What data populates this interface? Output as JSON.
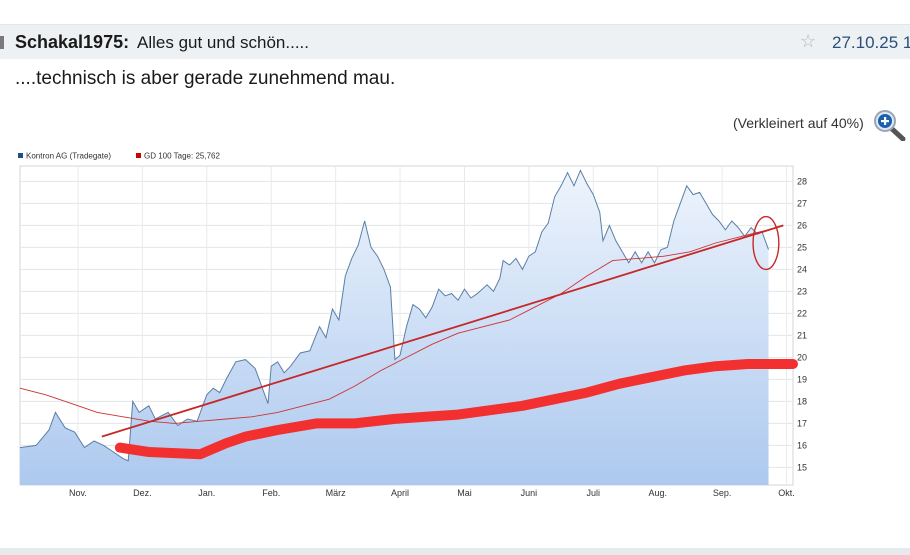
{
  "post": {
    "author": "Schakal1975:",
    "subject": "Alles gut und schön.....",
    "date": "27.10.25 1",
    "body": "....technisch is aber gerade zunehmend mau.",
    "image_note": "(Verkleinert auf 40%)",
    "icons": {
      "star": "star-icon",
      "zoom": "zoom-in-icon"
    }
  },
  "colors": {
    "price_line": "#5b7fa6",
    "area_top": "#e8f0fb",
    "area_bottom": "#a9c6ee",
    "gd100": "#cc3333",
    "trendline": "#c62828",
    "marker": "#f23030"
  },
  "chart_data": {
    "type": "area",
    "legend": [
      {
        "name": "Kontron AG (Tradegate)",
        "color": "#1f4e8c"
      },
      {
        "name": "GD 100 Tage: 25,762",
        "color": "#cc0000"
      }
    ],
    "x_ticks": [
      "Nov.",
      "Dez.",
      "Jan.",
      "Feb.",
      "März",
      "April",
      "Mai",
      "Juni",
      "Juli",
      "Aug.",
      "Sep.",
      "Okt."
    ],
    "y_ticks": [
      15,
      16,
      17,
      18,
      19,
      20,
      21,
      22,
      23,
      24,
      25,
      26,
      27,
      28
    ],
    "ylim": [
      14.2,
      28.7
    ],
    "xlim": [
      0,
      12
    ],
    "grid": true,
    "series": [
      {
        "name": "Kontron AG (Tradegate)",
        "values": [
          [
            0.0,
            15.9
          ],
          [
            0.25,
            16.0
          ],
          [
            0.45,
            16.7
          ],
          [
            0.55,
            17.5
          ],
          [
            0.7,
            16.8
          ],
          [
            0.85,
            16.6
          ],
          [
            1.0,
            15.9
          ],
          [
            1.15,
            16.2
          ],
          [
            1.3,
            16.0
          ],
          [
            1.45,
            15.7
          ],
          [
            1.6,
            15.4
          ],
          [
            1.68,
            15.3
          ],
          [
            1.75,
            18.0
          ],
          [
            1.85,
            17.5
          ],
          [
            2.0,
            17.8
          ],
          [
            2.1,
            17.2
          ],
          [
            2.3,
            17.5
          ],
          [
            2.45,
            16.9
          ],
          [
            2.6,
            17.2
          ],
          [
            2.75,
            17.1
          ],
          [
            2.9,
            18.3
          ],
          [
            3.0,
            18.6
          ],
          [
            3.1,
            18.4
          ],
          [
            3.2,
            19.0
          ],
          [
            3.35,
            19.8
          ],
          [
            3.5,
            19.9
          ],
          [
            3.65,
            19.5
          ],
          [
            3.75,
            18.7
          ],
          [
            3.85,
            17.9
          ],
          [
            3.9,
            19.6
          ],
          [
            4.0,
            19.8
          ],
          [
            4.1,
            19.3
          ],
          [
            4.2,
            19.6
          ],
          [
            4.35,
            20.2
          ],
          [
            4.5,
            20.3
          ],
          [
            4.65,
            21.4
          ],
          [
            4.75,
            20.9
          ],
          [
            4.85,
            22.2
          ],
          [
            4.95,
            21.7
          ],
          [
            5.05,
            23.7
          ],
          [
            5.15,
            24.5
          ],
          [
            5.25,
            25.1
          ],
          [
            5.35,
            26.2
          ],
          [
            5.45,
            25.0
          ],
          [
            5.55,
            24.6
          ],
          [
            5.65,
            24.0
          ],
          [
            5.75,
            23.2
          ],
          [
            5.82,
            19.9
          ],
          [
            5.9,
            20.1
          ],
          [
            6.0,
            21.4
          ],
          [
            6.1,
            22.4
          ],
          [
            6.2,
            22.2
          ],
          [
            6.3,
            21.8
          ],
          [
            6.4,
            22.3
          ],
          [
            6.5,
            23.1
          ],
          [
            6.6,
            22.8
          ],
          [
            6.7,
            22.9
          ],
          [
            6.8,
            22.6
          ],
          [
            6.9,
            23.1
          ],
          [
            7.0,
            22.7
          ],
          [
            7.1,
            22.9
          ],
          [
            7.25,
            23.3
          ],
          [
            7.35,
            23.0
          ],
          [
            7.45,
            23.6
          ],
          [
            7.5,
            24.4
          ],
          [
            7.6,
            24.2
          ],
          [
            7.7,
            24.5
          ],
          [
            7.8,
            24.0
          ],
          [
            7.9,
            24.6
          ],
          [
            8.0,
            24.8
          ],
          [
            8.1,
            25.7
          ],
          [
            8.2,
            26.1
          ],
          [
            8.3,
            27.3
          ],
          [
            8.4,
            27.8
          ],
          [
            8.5,
            28.4
          ],
          [
            8.6,
            27.8
          ],
          [
            8.7,
            28.5
          ],
          [
            8.8,
            27.9
          ],
          [
            8.9,
            27.4
          ],
          [
            9.0,
            26.6
          ],
          [
            9.05,
            25.3
          ],
          [
            9.15,
            26.0
          ],
          [
            9.25,
            25.3
          ],
          [
            9.35,
            24.8
          ],
          [
            9.45,
            24.3
          ],
          [
            9.55,
            24.8
          ],
          [
            9.65,
            24.3
          ],
          [
            9.75,
            24.8
          ],
          [
            9.85,
            24.3
          ],
          [
            9.95,
            24.9
          ],
          [
            10.05,
            25.0
          ],
          [
            10.15,
            26.2
          ],
          [
            10.25,
            27.0
          ],
          [
            10.35,
            27.8
          ],
          [
            10.45,
            27.4
          ],
          [
            10.55,
            27.5
          ],
          [
            10.65,
            27.0
          ],
          [
            10.75,
            26.5
          ],
          [
            10.85,
            26.2
          ],
          [
            10.95,
            25.8
          ],
          [
            11.05,
            26.2
          ],
          [
            11.15,
            25.9
          ],
          [
            11.25,
            25.5
          ],
          [
            11.35,
            25.9
          ],
          [
            11.45,
            25.6
          ],
          [
            11.52,
            25.7
          ],
          [
            11.62,
            24.9
          ]
        ]
      },
      {
        "name": "GD 100 Tage: 25,762",
        "values": [
          [
            0.0,
            18.6
          ],
          [
            0.4,
            18.3
          ],
          [
            0.8,
            17.9
          ],
          [
            1.2,
            17.5
          ],
          [
            1.6,
            17.3
          ],
          [
            2.0,
            17.1
          ],
          [
            2.4,
            17.0
          ],
          [
            2.8,
            17.1
          ],
          [
            3.2,
            17.2
          ],
          [
            3.6,
            17.3
          ],
          [
            4.0,
            17.5
          ],
          [
            4.4,
            17.8
          ],
          [
            4.8,
            18.1
          ],
          [
            5.2,
            18.7
          ],
          [
            5.6,
            19.4
          ],
          [
            6.0,
            20.0
          ],
          [
            6.4,
            20.6
          ],
          [
            6.8,
            21.1
          ],
          [
            7.2,
            21.4
          ],
          [
            7.6,
            21.7
          ],
          [
            8.0,
            22.3
          ],
          [
            8.4,
            22.9
          ],
          [
            8.8,
            23.7
          ],
          [
            9.2,
            24.4
          ],
          [
            9.6,
            24.5
          ],
          [
            10.0,
            24.6
          ],
          [
            10.4,
            24.8
          ],
          [
            10.8,
            25.2
          ],
          [
            11.2,
            25.5
          ],
          [
            11.62,
            25.8
          ]
        ]
      }
    ],
    "annotations": {
      "trendline": [
        [
          1.27,
          16.4
        ],
        [
          11.85,
          26.0
        ]
      ],
      "circle": {
        "cx": 11.58,
        "cy": 25.2,
        "rx": 0.2,
        "ry": 1.2
      },
      "marker_stroke": [
        [
          1.55,
          15.9
        ],
        [
          2.0,
          15.7
        ],
        [
          2.8,
          15.6
        ],
        [
          3.2,
          16.1
        ],
        [
          3.5,
          16.4
        ],
        [
          4.0,
          16.7
        ],
        [
          4.6,
          17.0
        ],
        [
          5.2,
          17.0
        ],
        [
          5.8,
          17.2
        ],
        [
          6.3,
          17.3
        ],
        [
          6.8,
          17.4
        ],
        [
          7.3,
          17.6
        ],
        [
          7.8,
          17.8
        ],
        [
          8.3,
          18.1
        ],
        [
          8.8,
          18.4
        ],
        [
          9.3,
          18.8
        ],
        [
          9.8,
          19.1
        ],
        [
          10.3,
          19.4
        ],
        [
          10.8,
          19.6
        ],
        [
          11.3,
          19.7
        ],
        [
          11.65,
          19.7
        ],
        [
          12.0,
          19.7
        ]
      ]
    }
  }
}
